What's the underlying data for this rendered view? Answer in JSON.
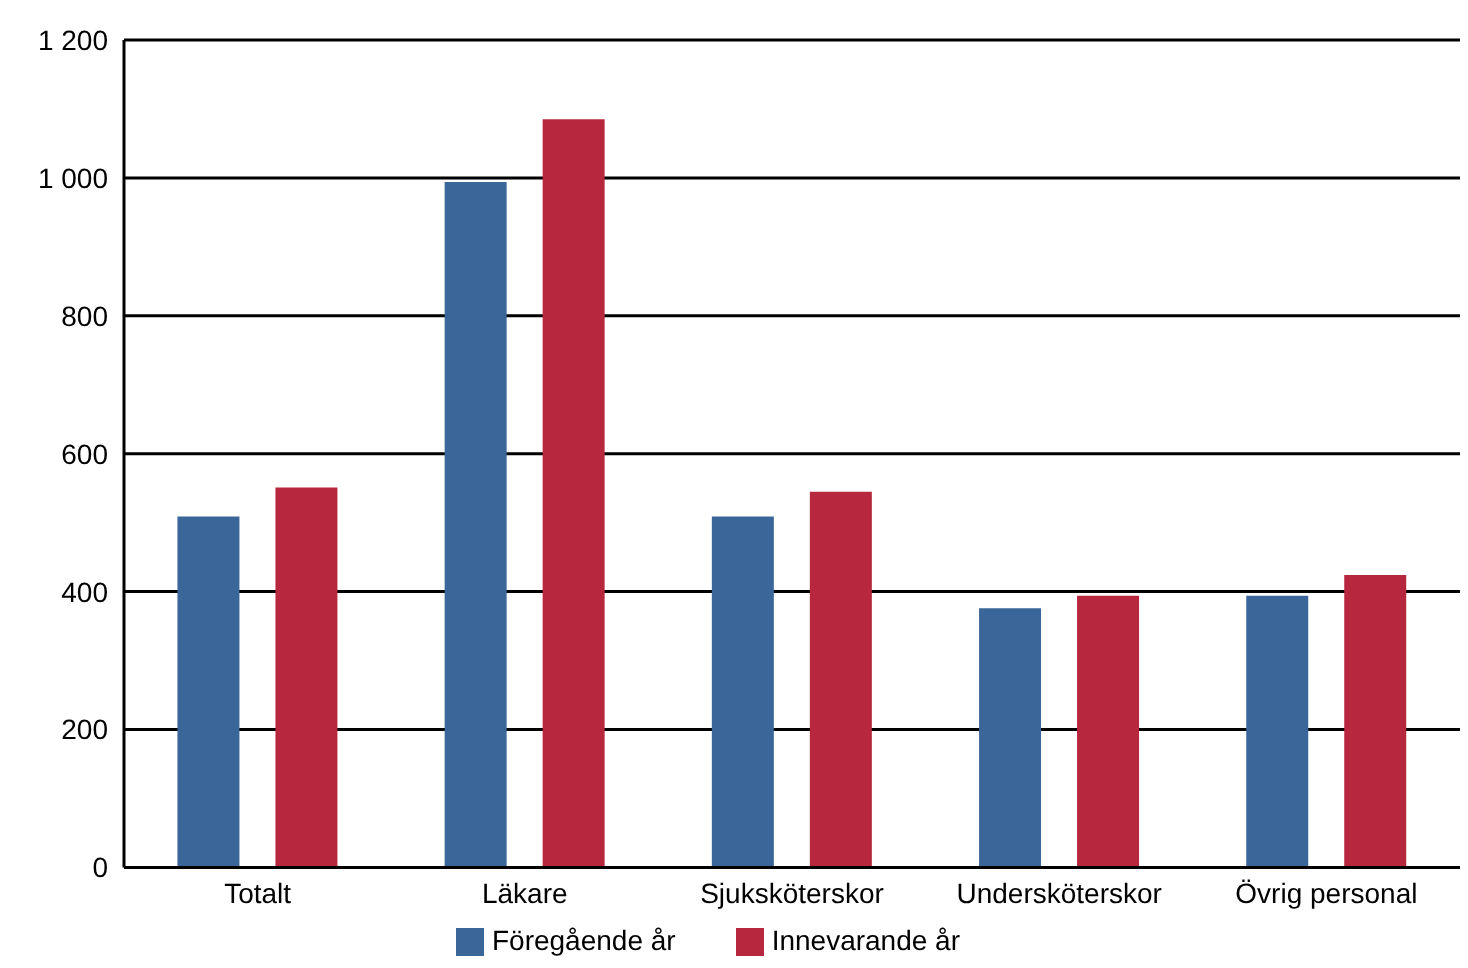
{
  "chart_data": {
    "type": "bar",
    "categories": [
      "Totalt",
      "Läkare",
      "Sjuksköterskor",
      "Undersköterskor",
      "Övrig personal"
    ],
    "series": [
      {
        "name": "Föregående år",
        "color": "#3a6699",
        "values": [
          509,
          994,
          509,
          376,
          394
        ]
      },
      {
        "name": "Innevarande år",
        "color": "#b7283e",
        "values": [
          551,
          1085,
          545,
          394,
          424
        ]
      }
    ],
    "ylim": [
      0,
      1200
    ],
    "yticks": [
      0,
      200,
      400,
      600,
      800,
      {
        "value": 1000,
        "label": "1 000"
      },
      {
        "value": 1200,
        "label": "1 200"
      }
    ],
    "grid": "y",
    "legend": "bottom"
  }
}
